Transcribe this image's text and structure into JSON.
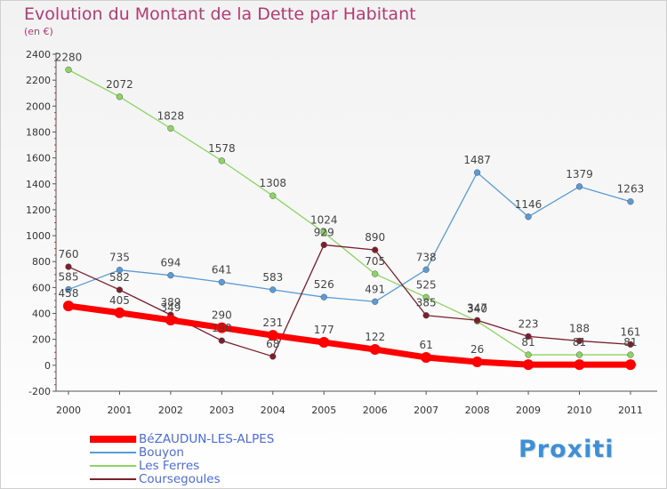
{
  "chart_data": {
    "type": "line",
    "title": "Evolution du Montant de la Dette par Habitant",
    "unit_label": "(en €)",
    "x": [
      "2000",
      "2001",
      "2002",
      "2003",
      "2004",
      "2005",
      "2006",
      "2007",
      "2008",
      "2009",
      "2010",
      "2011"
    ],
    "ylim": [
      -200,
      2400
    ],
    "yticks": [
      "-200",
      "0",
      "200",
      "400",
      "600",
      "800",
      "1000",
      "1200",
      "1400",
      "1600",
      "1800",
      "2000",
      "2200",
      "2400"
    ],
    "grid": false,
    "legend_placement": "bottom-left",
    "series": [
      {
        "name": "BéZAUDUN-LES-ALPES",
        "color": "#ff0000",
        "values": [
          458,
          405,
          349,
          290,
          231,
          177,
          122,
          61,
          26,
          5,
          5,
          5
        ],
        "labels": [
          "458",
          "405",
          "349",
          "290",
          "231",
          "177",
          "122",
          "61",
          "26",
          "",
          "",
          ""
        ]
      },
      {
        "name": "Bouyon",
        "color": "#5b9bd5",
        "values": [
          585,
          735,
          694,
          641,
          583,
          526,
          491,
          738,
          1487,
          1146,
          1379,
          1263
        ],
        "labels": [
          "585",
          "735",
          "694",
          "641",
          "583",
          "526",
          "491",
          "738",
          "1487",
          "1146",
          "1379",
          "1263"
        ]
      },
      {
        "name": "Les Ferres",
        "color": "#8cd463",
        "values": [
          2280,
          2072,
          1828,
          1578,
          1308,
          1024,
          705,
          525,
          340,
          81,
          81,
          81
        ],
        "labels": [
          "2280",
          "2072",
          "1828",
          "1578",
          "1308",
          "1024",
          "705",
          "525",
          "340",
          "81",
          "81",
          "81"
        ]
      },
      {
        "name": "Coursegoules",
        "color": "#7a1f2b",
        "values": [
          760,
          582,
          389,
          190,
          68,
          929,
          890,
          385,
          347,
          223,
          188,
          161
        ],
        "labels": [
          "760",
          "582",
          "389",
          "190",
          "68",
          "929",
          "890",
          "385",
          "347",
          "223",
          "188",
          "161"
        ]
      }
    ]
  },
  "logo_text": "Proxiti"
}
